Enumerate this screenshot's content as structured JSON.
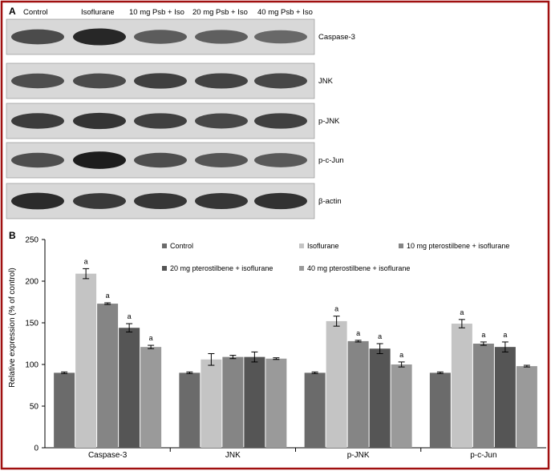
{
  "panel_a": {
    "label": "A",
    "lanes": [
      "Control",
      "Isoflurane",
      "10 mg Psb + Iso",
      "20 mg Psb + Iso",
      "40 mg Psb + Iso"
    ],
    "blots": [
      {
        "name": "Caspase-3",
        "intensity": [
          0.72,
          0.92,
          0.62,
          0.6,
          0.55
        ]
      },
      {
        "name": "JNK",
        "intensity": [
          0.7,
          0.72,
          0.78,
          0.76,
          0.74
        ]
      },
      {
        "name": "p-JNK",
        "intensity": [
          0.8,
          0.85,
          0.78,
          0.74,
          0.78
        ]
      },
      {
        "name": "p-c-Jun",
        "intensity": [
          0.7,
          0.98,
          0.7,
          0.66,
          0.64
        ]
      },
      {
        "name": "β-actin",
        "intensity": [
          0.9,
          0.82,
          0.84,
          0.84,
          0.86
        ]
      }
    ]
  },
  "chart_data": {
    "type": "bar",
    "panel_label": "B",
    "title": "",
    "ylabel": "Relative expression (% of control)",
    "xlabel": "",
    "ylim": [
      0,
      250
    ],
    "yticks": [
      0,
      50,
      100,
      150,
      200,
      250
    ],
    "grid": false,
    "legend_placement": "top-right",
    "categories": [
      "Caspase-3",
      "JNK",
      "p-JNK",
      "p-c-Jun"
    ],
    "series": [
      {
        "name": "Control",
        "color": "#6b6b6b",
        "values": [
          90,
          90,
          90,
          90
        ],
        "errors": [
          1,
          1,
          1,
          1
        ],
        "labels": [
          "",
          "",
          "",
          ""
        ]
      },
      {
        "name": "Isoflurane",
        "color": "#c4c4c4",
        "values": [
          209,
          106,
          152,
          149
        ],
        "errors": [
          6,
          7,
          6,
          5
        ],
        "labels": [
          "a",
          "",
          "a",
          "a"
        ]
      },
      {
        "name": "10 mg pterostilbene + isoflurane",
        "color": "#858585",
        "values": [
          173,
          109,
          128,
          125
        ],
        "errors": [
          1,
          2,
          1,
          2
        ],
        "labels": [
          "a",
          "",
          "a",
          "a"
        ]
      },
      {
        "name": "20 mg pterostilbene + isoflurane",
        "color": "#555555",
        "values": [
          144,
          109,
          119,
          121
        ],
        "errors": [
          5,
          6,
          6,
          6
        ],
        "labels": [
          "a",
          "",
          "a",
          "a"
        ]
      },
      {
        "name": "40 mg pterostilbene + isoflurane",
        "color": "#9a9a9a",
        "values": [
          121,
          107,
          100,
          98
        ],
        "errors": [
          2,
          1,
          3,
          1
        ],
        "labels": [
          "a",
          "",
          "a",
          ""
        ]
      }
    ]
  }
}
